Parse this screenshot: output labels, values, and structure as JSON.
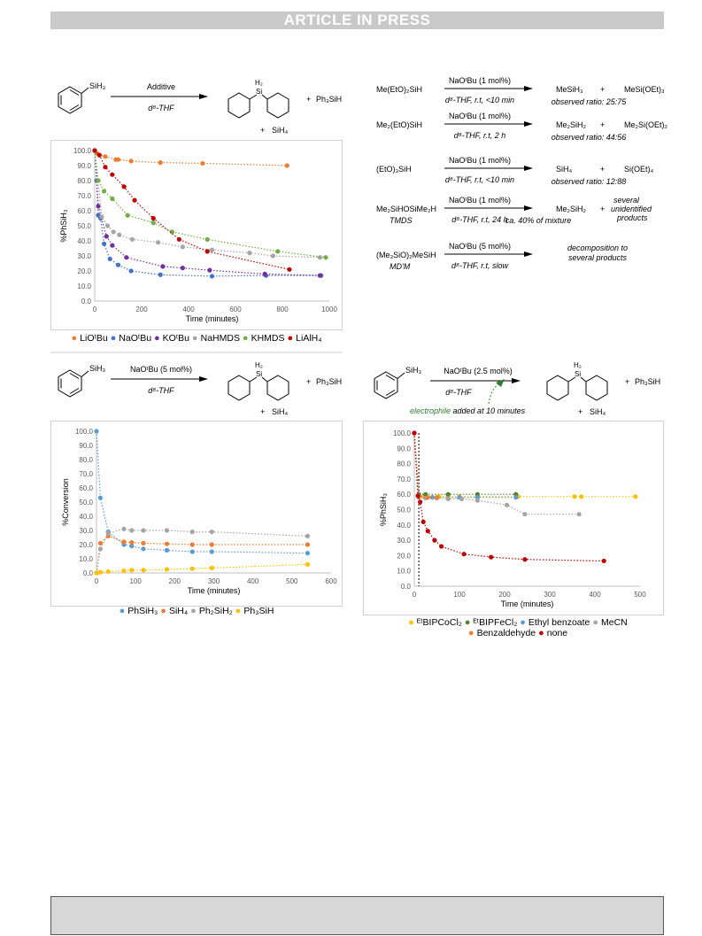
{
  "header": {
    "banner": "ARTICLE IN PRESS"
  },
  "scheme_a": {
    "reactant": "SiH₃",
    "arrow_top": "Additive",
    "arrow_bottom": "d⁸-THF",
    "product_h2": "H₂",
    "product_si": "Si",
    "plus1": "+",
    "byproduct1": "Ph₃SiH",
    "plus2": "+",
    "byproduct2": "SiH₄"
  },
  "scheme_c": {
    "reactant": "SiH₃",
    "arrow_top": "NaOᵗBu (5 mol%)",
    "arrow_bottom": "d⁸-THF",
    "product_h2": "H₂",
    "product_si": "Si",
    "plus1": "+",
    "byproduct1": "Ph₃SiH",
    "plus2": "+",
    "byproduct2": "SiH₄"
  },
  "scheme_d": {
    "reactant": "SiH₃",
    "arrow_top": "NaOᵗBu (2.5 mol%)",
    "arrow_bottom": "d⁸-THF",
    "note_green": "electrophile",
    "note_rest": " added at 10 minutes",
    "product_h2": "H₂",
    "product_si": "Si",
    "plus1": "+",
    "byproduct1": "Ph₃SiH",
    "plus2": "+",
    "byproduct2": "SiH₄"
  },
  "scheme_b": {
    "rows": [
      {
        "reactant": "Me(EtO)₂SiH",
        "sub": "",
        "arrow_top": "NaOᵗBu (1 mol%)",
        "arrow_bottom": "d⁸-THF, r.t, <10 min",
        "p1": "MeSiH₃",
        "plus": "+",
        "p2": "MeSi(OEt)₃",
        "note": "observed ratio: 25:75"
      },
      {
        "reactant": "Me₂(EtO)SiH",
        "sub": "",
        "arrow_top": "NaOᵗBu (1 mol%)",
        "arrow_bottom": "d⁸-THF, r.t, 2 h",
        "p1": "Me₂SiH₂",
        "plus": "+",
        "p2": "Me₂Si(OEt)₂",
        "note": "observed ratio: 44:56"
      },
      {
        "reactant": "(EtO)₃SiH",
        "sub": "",
        "arrow_top": "NaOᵗBu (1 mol%)",
        "arrow_bottom": "d⁸-THF, r.t, <10 min",
        "p1": "SiH₄",
        "plus": "+",
        "p2": "Si(OEt)₄",
        "note": "observed ratio: 12:88"
      },
      {
        "reactant": "Me₂SiHOSiMe₂H",
        "sub": "TMDS",
        "arrow_top": "NaOᵗBu (1 mol%)",
        "arrow_bottom": "d⁸-THF, r.t, 24 h",
        "p1": "Me₂SiH₂",
        "plus": "+",
        "p2": "several",
        "p2b": "unidentified",
        "p2c": "products",
        "note": "ca. 40% of mixture"
      },
      {
        "reactant": "(Me₃SiO)₂MeSiH",
        "sub": "MD'M",
        "arrow_top": "NaOᵗBu (5 mol%)",
        "arrow_bottom": "d⁸-THF, r.t, slow",
        "p1": "decomposition to",
        "p1b": "several products"
      }
    ]
  },
  "chart_data": [
    {
      "type": "scatter",
      "ylabel": "%PhSiH₃",
      "xlabel": "Time (minutes)",
      "xlim": [
        0,
        1000
      ],
      "ylim": [
        0,
        100
      ],
      "xticks": [
        "0",
        "200",
        "400",
        "600",
        "800",
        "1000"
      ],
      "yticks": [
        "0.0",
        "10.0",
        "20.0",
        "30.0",
        "40.0",
        "50.0",
        "60.0",
        "70.0",
        "80.0",
        "90.0",
        "100.0"
      ],
      "legend": "bottom",
      "series": [
        {
          "name": "LiOᵗBu",
          "color": "#ed7d31",
          "x": [
            0,
            10,
            20,
            45,
            90,
            100,
            155,
            280,
            460,
            820
          ],
          "y": [
            100,
            98,
            97,
            96,
            94,
            94,
            93,
            92,
            91.5,
            90
          ]
        },
        {
          "name": "NaOᵗBu",
          "color": "#4472c4",
          "x": [
            0,
            8,
            15,
            25,
            40,
            65,
            100,
            155,
            280,
            500,
            730,
            965
          ],
          "y": [
            100,
            80,
            57,
            55,
            38,
            28,
            24,
            20,
            17.5,
            16.5,
            17,
            17
          ]
        },
        {
          "name": "KOᵗBu",
          "color": "#7030a0",
          "x": [
            0,
            15,
            50,
            75,
            135,
            290,
            375,
            490,
            725,
            960
          ],
          "y": [
            100,
            63,
            43,
            37,
            29,
            23,
            22,
            20.5,
            18,
            17
          ]
        },
        {
          "name": "NaHMDS",
          "color": "#a5a5a5",
          "x": [
            0,
            30,
            55,
            80,
            105,
            160,
            270,
            375,
            500,
            660,
            760,
            960
          ],
          "y": [
            100,
            56,
            50,
            46,
            44,
            41,
            39,
            36,
            34,
            32,
            30,
            29
          ]
        },
        {
          "name": "KHMDS",
          "color": "#70ad47",
          "x": [
            0,
            15,
            40,
            75,
            140,
            250,
            330,
            480,
            780,
            985
          ],
          "y": [
            100,
            80,
            73,
            68,
            57,
            52,
            46,
            41,
            33,
            29
          ]
        },
        {
          "name": "LiAlH₄",
          "color": "#c00000",
          "x": [
            0,
            20,
            45,
            75,
            125,
            170,
            250,
            360,
            480,
            830
          ],
          "y": [
            100,
            97,
            89,
            84,
            76,
            67,
            55,
            41,
            33,
            21
          ]
        }
      ]
    },
    {
      "type": "scatter",
      "ylabel": "%Conversion",
      "xlabel": "Time (minutes)",
      "xlim": [
        0,
        600
      ],
      "ylim": [
        0,
        100
      ],
      "xticks": [
        "0",
        "100",
        "200",
        "300",
        "400",
        "500",
        "600"
      ],
      "yticks": [
        "0.0",
        "10.0",
        "20.0",
        "30.0",
        "40.0",
        "50.0",
        "60.0",
        "70.0",
        "80.0",
        "90.0",
        "100.0"
      ],
      "legend": "bottom",
      "series": [
        {
          "name": "PhSiH₃",
          "color": "#5b9bd5",
          "x": [
            0,
            10,
            30,
            70,
            90,
            120,
            180,
            245,
            295,
            540
          ],
          "y": [
            100,
            53,
            29,
            20,
            19,
            17,
            16,
            15,
            15,
            14
          ]
        },
        {
          "name": "SiH₄",
          "color": "#ed7d31",
          "x": [
            0,
            10,
            30,
            70,
            90,
            120,
            180,
            245,
            295,
            540
          ],
          "y": [
            0,
            21,
            26,
            22,
            21.5,
            21,
            20.5,
            20,
            20,
            20
          ]
        },
        {
          "name": "Ph₂SiH₂",
          "color": "#a5a5a5",
          "x": [
            0,
            10,
            30,
            70,
            90,
            120,
            180,
            245,
            295,
            540
          ],
          "y": [
            0,
            17,
            28,
            31,
            30,
            30,
            30,
            29,
            29,
            26
          ]
        },
        {
          "name": "Ph₃SiH",
          "color": "#ffc000",
          "x": [
            0,
            10,
            30,
            70,
            90,
            120,
            180,
            245,
            295,
            540
          ],
          "y": [
            0,
            0.5,
            1,
            1.5,
            2,
            2,
            2.5,
            3,
            3.5,
            6
          ]
        }
      ]
    },
    {
      "type": "scatter",
      "ylabel": "%PhSiH₃",
      "xlabel": "Time (minutes)",
      "xlim": [
        0,
        500
      ],
      "ylim": [
        0,
        100
      ],
      "xticks": [
        "0",
        "100",
        "200",
        "300",
        "400",
        "500"
      ],
      "yticks": [
        "0.0",
        "10.0",
        "20.0",
        "30.0",
        "40.0",
        "50.0",
        "60.0",
        "70.0",
        "80.0",
        "90.0",
        "100.0"
      ],
      "legend": "bottom",
      "annotation": "vertical dashed line at 10 minutes",
      "series": [
        {
          "name": "ᴱᵗBIPCoCl₂",
          "color": "#ffc000",
          "x": [
            0,
            10,
            20,
            40,
            55,
            75,
            100,
            140,
            230,
            355,
            370,
            490
          ],
          "y": [
            100,
            59,
            58.5,
            58,
            58.5,
            58.5,
            58.5,
            58.5,
            58.5,
            58.5,
            58.5,
            58.5
          ]
        },
        {
          "name": "ᴱᵗBIPFeCl₂",
          "color": "#548235",
          "x": [
            0,
            10,
            25,
            75,
            140,
            225
          ],
          "y": [
            100,
            60,
            60,
            60,
            60,
            60
          ]
        },
        {
          "name": "Ethyl benzoate",
          "color": "#5b9bd5",
          "x": [
            0,
            10,
            40,
            100,
            140,
            225
          ],
          "y": [
            100,
            59,
            58,
            58,
            58,
            58
          ]
        },
        {
          "name": "MeCN",
          "color": "#a5a5a5",
          "x": [
            0,
            10,
            25,
            50,
            75,
            105,
            140,
            205,
            245,
            365
          ],
          "y": [
            100,
            58,
            57.5,
            57.5,
            57,
            57,
            56,
            53,
            47,
            47
          ]
        },
        {
          "name": "Benzaldehyde",
          "color": "#ed7d31",
          "x": [
            0,
            10,
            30,
            50
          ],
          "y": [
            100,
            58.5,
            58,
            58
          ]
        },
        {
          "name": "none",
          "color": "#c00000",
          "x": [
            0,
            8,
            13,
            20,
            30,
            45,
            60,
            110,
            170,
            245,
            420
          ],
          "y": [
            100,
            59,
            55,
            42,
            36,
            30,
            26,
            21,
            19,
            17.5,
            16.5
          ]
        }
      ]
    }
  ]
}
